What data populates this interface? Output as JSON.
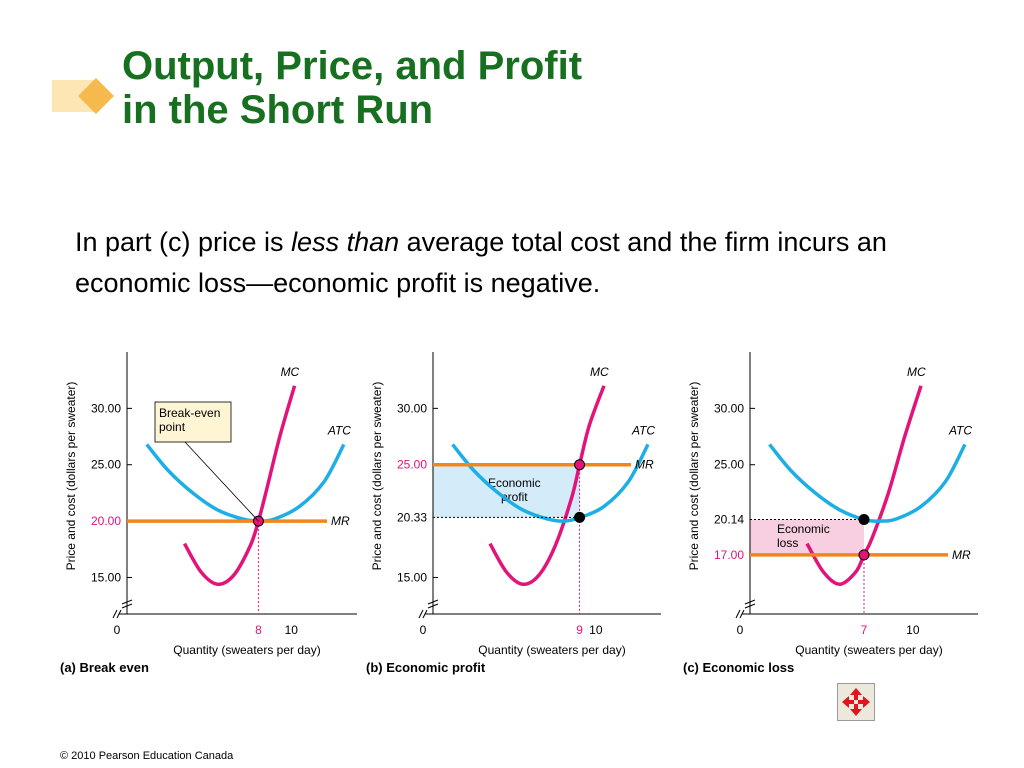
{
  "slide": {
    "title_line1": "Output, Price, and Profit",
    "title_line2": "in the Short Run",
    "body_before": "In part (c) price is ",
    "body_emphasis": "less than",
    "body_after": " average total cost and the firm incurs an economic loss—economic profit is negative.",
    "footer": "© 2010 Pearson Education Canada",
    "nav_icon": "move-arrows-icon"
  },
  "colors": {
    "title": "#17701f",
    "mc": "#e2147a",
    "atc": "#1eaee6",
    "mr": "#f0861c",
    "profit_fill": "#d4ecf9",
    "loss_fill": "#f7cfe0",
    "price_label": "#e2147a"
  },
  "chart_data": [
    {
      "type": "line",
      "panel_label": "(a) Break even",
      "ylabel": "Price and cost (dollars per sweater)",
      "xlabel": "Quantity (sweaters per day)",
      "xlim": [
        0,
        14
      ],
      "ylim": [
        13,
        35
      ],
      "yticks": [
        "30.00",
        "25.00",
        "15.00"
      ],
      "ytick_values": [
        30,
        25,
        15
      ],
      "highlight_price": {
        "label": "20.00",
        "value": 20
      },
      "xticks": [
        {
          "label": "8",
          "value": 8,
          "highlight": true
        },
        {
          "label": "10",
          "value": 10,
          "highlight": false
        }
      ],
      "origin_label": "0",
      "series": [
        {
          "name": "MC",
          "x": [
            3.5,
            4.5,
            5.5,
            6.5,
            7.5,
            8,
            8.5,
            9.3,
            10.2
          ],
          "y": [
            18,
            15.5,
            14.4,
            15.2,
            17.8,
            20,
            22.8,
            27.5,
            32
          ]
        },
        {
          "name": "ATC",
          "x": [
            1.2,
            2.5,
            4,
            5.5,
            7,
            8,
            9,
            10.5,
            12,
            13.2
          ],
          "y": [
            26.8,
            24.5,
            22.5,
            21,
            20.2,
            20,
            20.2,
            21.3,
            23.5,
            26.8
          ]
        },
        {
          "name": "MR",
          "x": [
            0,
            14
          ],
          "y": [
            20,
            20
          ]
        }
      ],
      "points": [
        {
          "x": 8,
          "y": 20,
          "color": "#e2147a"
        }
      ],
      "annotation": {
        "lines": [
          "Break-even",
          "point"
        ]
      }
    },
    {
      "type": "line",
      "panel_label": "(b) Economic profit",
      "ylabel": "Price and cost (dollars per sweater)",
      "xlabel": "Quantity (sweaters per day)",
      "xlim": [
        0,
        14
      ],
      "ylim": [
        13,
        35
      ],
      "yticks": [
        "30.00",
        "15.00"
      ],
      "ytick_values": [
        30,
        15
      ],
      "highlight_price": {
        "label": "25.00",
        "value": 25
      },
      "cost_level": {
        "label": "20.33",
        "value": 20.33
      },
      "xticks": [
        {
          "label": "9",
          "value": 9,
          "highlight": true
        },
        {
          "label": "10",
          "value": 10,
          "highlight": false
        }
      ],
      "origin_label": "0",
      "series": [
        {
          "name": "MC",
          "x": [
            3.5,
            4.5,
            5.5,
            6.5,
            7.5,
            8.5,
            9,
            9.6,
            10.5
          ],
          "y": [
            18,
            15.5,
            14.4,
            15.2,
            17.8,
            22,
            25,
            28.5,
            32
          ]
        },
        {
          "name": "ATC",
          "x": [
            1.2,
            2.5,
            4,
            5.5,
            7,
            8,
            9,
            10.5,
            12,
            13.2
          ],
          "y": [
            26.8,
            24.5,
            22.5,
            21,
            20.2,
            20,
            20.3,
            21.3,
            23.5,
            26.8
          ]
        },
        {
          "name": "MR",
          "x": [
            0,
            14
          ],
          "y": [
            25,
            25
          ]
        }
      ],
      "points": [
        {
          "x": 9,
          "y": 25,
          "color": "#e2147a"
        },
        {
          "x": 9,
          "y": 20.33,
          "color": "#000000"
        }
      ],
      "shaded_area": {
        "label_lines": [
          "Economic",
          "profit"
        ],
        "x": [
          0,
          9
        ],
        "y": [
          20.33,
          25
        ]
      }
    },
    {
      "type": "line",
      "panel_label": "(c) Economic loss",
      "ylabel": "Price and cost (dollars per sweater)",
      "xlabel": "Quantity (sweaters per day)",
      "xlim": [
        0,
        14
      ],
      "ylim": [
        13,
        35
      ],
      "yticks": [
        "30.00",
        "25.00"
      ],
      "ytick_values": [
        30,
        25
      ],
      "highlight_price": {
        "label": "17.00",
        "value": 17
      },
      "cost_level": {
        "label": "20.14",
        "value": 20.14
      },
      "xticks": [
        {
          "label": "7",
          "value": 7,
          "highlight": true
        },
        {
          "label": "10",
          "value": 10,
          "highlight": false
        }
      ],
      "origin_label": "0",
      "series": [
        {
          "name": "MC",
          "x": [
            3.5,
            4.5,
            5.5,
            6.5,
            7,
            7.5,
            8.5,
            9.5,
            10.5
          ],
          "y": [
            18,
            15.5,
            14.4,
            15.5,
            17,
            18.5,
            22.5,
            27.5,
            32
          ]
        },
        {
          "name": "ATC",
          "x": [
            1.2,
            2.5,
            4,
            5.5,
            7,
            8,
            9,
            10.5,
            12,
            13.2
          ],
          "y": [
            26.8,
            24.5,
            22.5,
            21,
            20.14,
            20,
            20.2,
            21.3,
            23.5,
            26.8
          ]
        },
        {
          "name": "MR",
          "x": [
            0,
            14
          ],
          "y": [
            17,
            17
          ]
        }
      ],
      "points": [
        {
          "x": 7,
          "y": 17,
          "color": "#e2147a"
        },
        {
          "x": 7,
          "y": 20.14,
          "color": "#000000"
        }
      ],
      "shaded_area": {
        "label_lines": [
          "Economic",
          "loss"
        ],
        "x": [
          0,
          7
        ],
        "y": [
          17,
          20.14
        ]
      }
    }
  ]
}
